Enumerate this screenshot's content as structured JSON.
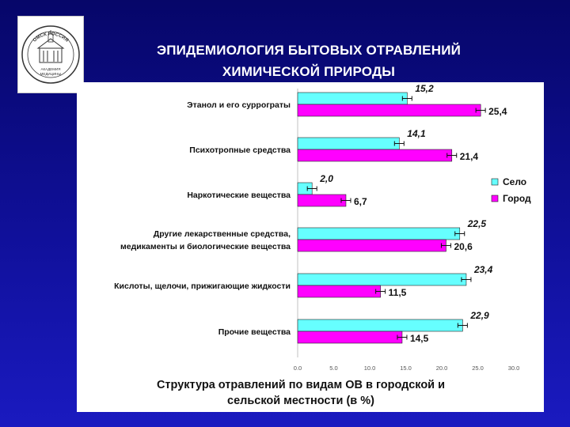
{
  "slide": {
    "title_line1": "ЭПИДЕМИОЛОГИЯ БЫТОВЫХ ОТРАВЛЕНИЙ",
    "title_line2": "ХИМИЧЕСКОЙ ПРИРОДЫ",
    "logo_top_text": "ОМСК   РОССИЯ",
    "logo_bottom_text_1": "АКАДЕМИЯ",
    "logo_bottom_text_2": "МЕДИЦИНЫ",
    "colors": {
      "background": "#0a0a7a",
      "panel": "#ffffff",
      "title_text": "#ffffff"
    }
  },
  "chart_data": {
    "type": "bar",
    "orientation": "horizontal",
    "categories": [
      [
        "Этанол и его суррограты"
      ],
      [
        "Психотропные средства"
      ],
      [
        "Наркотические вещества"
      ],
      [
        "Другие лекарственные средства,",
        "медикаменты и биологические вещества"
      ],
      [
        "Кислоты, щелочи, прижигающие жидкости"
      ],
      [
        "Прочие вещества"
      ]
    ],
    "series": [
      {
        "name": "Село",
        "color": "#66ffff",
        "values": [
          15.2,
          14.1,
          2.0,
          22.5,
          23.4,
          22.9
        ],
        "labels": [
          "15,2",
          "14,1",
          "2,0",
          "22,5",
          "23,4",
          "22,9"
        ],
        "label_style": "italic"
      },
      {
        "name": "Город",
        "color": "#ff00ff",
        "values": [
          25.4,
          21.4,
          6.7,
          20.6,
          11.5,
          14.5
        ],
        "labels": [
          "25,4",
          "21,4",
          "6,7",
          "20,6",
          "11,5",
          "14,5"
        ],
        "label_style": "normal"
      }
    ],
    "error_bars": true,
    "x_ticks": [
      "0.0",
      "5.0",
      "10.0",
      "15.0",
      "20.0",
      "25.0",
      "30.0"
    ],
    "xlim": [
      0,
      30
    ],
    "legend_position": "right",
    "caption_line1": "Структура отравлений по видам ОВ в городской и",
    "caption_line2": "сельской местности (в %)",
    "grid": false
  }
}
